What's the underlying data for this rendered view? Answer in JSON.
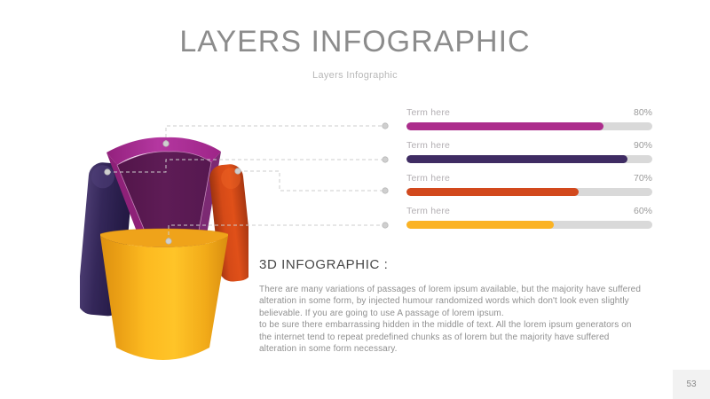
{
  "slide": {
    "title": "LAYERS INFOGRAPHIC",
    "subtitle": "Layers Infographic",
    "page_number": "53"
  },
  "section": {
    "heading": "3D INFOGRAPHIC :",
    "body": "There are many variations of passages of lorem ipsum available, but the majority have suffered alteration in some form, by injected humour randomized words which don't look even slightly believable. If you are going to use A passage of lorem ipsum.\n to be sure there embarrassing hidden in the middle of text. All the lorem ipsum generators  on the internet tend to repeat predefined chunks as of lorem but the majority have suffered alteration in some form  necessary."
  },
  "bars": [
    {
      "label": "Term here",
      "percent": 80,
      "percent_label": "80%",
      "color": "#AC2D8C"
    },
    {
      "label": "Term here",
      "percent": 90,
      "percent_label": "90%",
      "color": "#3F2C63"
    },
    {
      "label": "Term here",
      "percent": 70,
      "percent_label": "70%",
      "color": "#D2491D"
    },
    {
      "label": "Term here",
      "percent": 60,
      "percent_label": "60%",
      "color": "#FBB324"
    }
  ],
  "chart_data": {
    "type": "bar",
    "categories": [
      "Term here",
      "Term here",
      "Term here",
      "Term here"
    ],
    "series": [
      {
        "name": "progress",
        "values": [
          80,
          90,
          70,
          60
        ]
      }
    ],
    "value_labels": [
      "80%",
      "90%",
      "70%",
      "60%"
    ],
    "colors": [
      "#AC2D8C",
      "#3F2C63",
      "#D2491D",
      "#FBB324"
    ],
    "track_color": "#D9D9D9",
    "title": "",
    "xlabel": "",
    "ylabel": "",
    "xlim": [
      0,
      100
    ],
    "legend": false,
    "orientation": "horizontal"
  },
  "graphic": {
    "type": "3d-layered-cylinder",
    "layers": [
      {
        "name": "top-layer",
        "color": "#A82A8E"
      },
      {
        "name": "left-layer",
        "color": "#362A5E"
      },
      {
        "name": "right-layer",
        "color": "#D2491D"
      },
      {
        "name": "base-layer",
        "color": "#FBB31E"
      }
    ]
  }
}
